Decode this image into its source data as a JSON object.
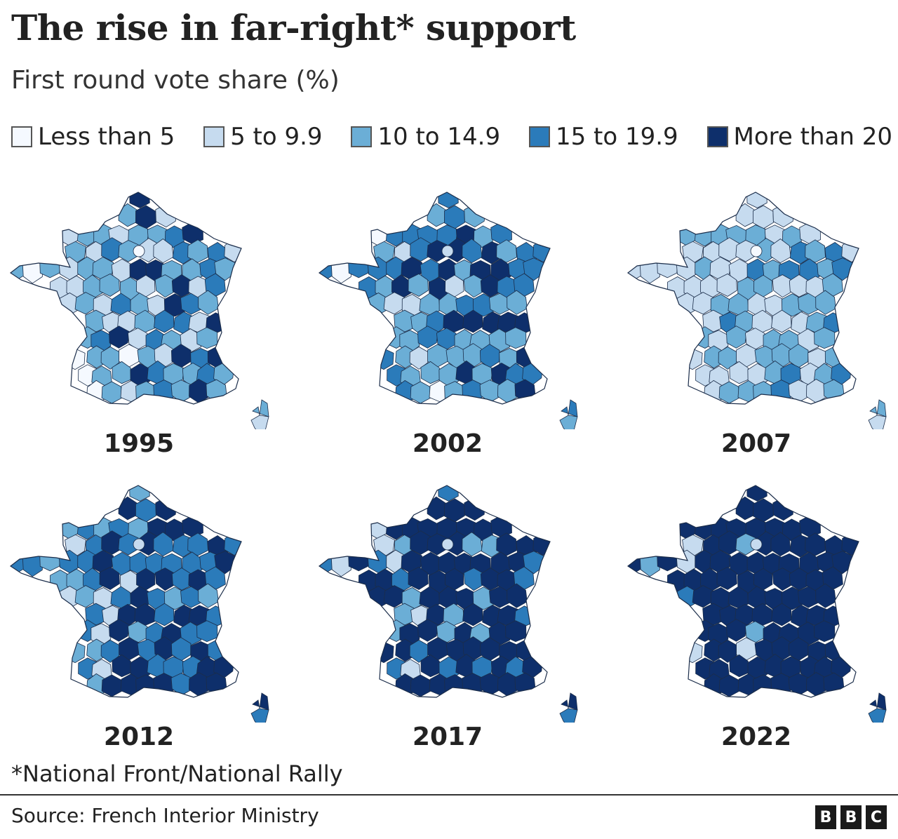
{
  "header": {
    "title": "The rise in far-right* support",
    "subtitle": "First round vote share (%)"
  },
  "legend": [
    {
      "label": "Less than 5",
      "color": "#f5f9ff"
    },
    {
      "label": "5 to 9.9",
      "color": "#c6dbef"
    },
    {
      "label": "10 to 14.9",
      "color": "#6baed6"
    },
    {
      "label": "15 to 19.9",
      "color": "#2b7bba"
    },
    {
      "label": "More than 20",
      "color": "#0e2f6b"
    }
  ],
  "maps": [
    {
      "year": "1995",
      "mix": [
        0.03,
        0.3,
        0.37,
        0.18,
        0.12
      ],
      "paris_class": 0
    },
    {
      "year": "2002",
      "mix": [
        0.01,
        0.08,
        0.35,
        0.36,
        0.2
      ],
      "paris_class": 1
    },
    {
      "year": "2007",
      "mix": [
        0.0,
        0.5,
        0.4,
        0.1,
        0.0
      ],
      "paris_class": 0
    },
    {
      "year": "2012",
      "mix": [
        0.0,
        0.03,
        0.2,
        0.37,
        0.4
      ],
      "paris_class": 1
    },
    {
      "year": "2017",
      "mix": [
        0.0,
        0.02,
        0.13,
        0.2,
        0.65
      ],
      "paris_class": 1
    },
    {
      "year": "2022",
      "mix": [
        0.0,
        0.01,
        0.03,
        0.06,
        0.9
      ],
      "paris_class": 1
    }
  ],
  "footnote": "*National Front/National Rally",
  "footer": {
    "source": "Source: French Interior Ministry",
    "logo": [
      "B",
      "B",
      "C"
    ]
  }
}
